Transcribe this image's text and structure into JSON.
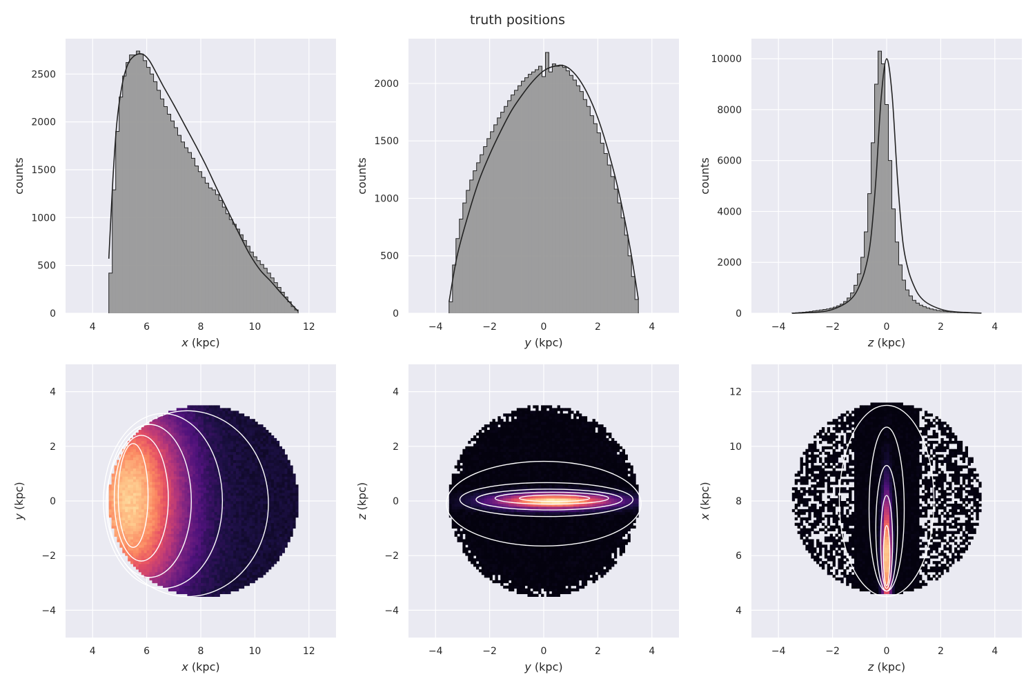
{
  "figure_title": "truth positions",
  "style": {
    "axes_bg": "#eaeaf2",
    "grid": "#ffffff",
    "hist_fill": "#999999",
    "hist_edge": "#222222",
    "contour": "#ffffff",
    "colormap": "magma"
  },
  "chart_data": [
    {
      "type": "histogram",
      "name": "hist-x",
      "xlabel_var": "x",
      "xlabel_unit": " (kpc)",
      "ylabel": "counts",
      "xlim": [
        3,
        13
      ],
      "ylim": [
        0,
        2870
      ],
      "xticks": [
        4,
        6,
        8,
        10,
        12
      ],
      "yticks": [
        0,
        500,
        1000,
        1500,
        2000,
        2500
      ],
      "bin_range": [
        4.6,
        11.6
      ],
      "bin_counts": [
        420,
        1290,
        1900,
        2260,
        2480,
        2620,
        2700,
        2700,
        2740,
        2710,
        2640,
        2570,
        2500,
        2420,
        2330,
        2240,
        2160,
        2080,
        2010,
        1940,
        1860,
        1790,
        1730,
        1680,
        1620,
        1540,
        1480,
        1420,
        1360,
        1310,
        1290,
        1240,
        1180,
        1110,
        1040,
        980,
        930,
        880,
        820,
        760,
        700,
        640,
        590,
        550,
        510,
        470,
        420,
        370,
        320,
        270,
        220,
        170,
        120,
        70,
        35
      ],
      "kde_x": [
        4.6,
        4.75,
        4.9,
        5.1,
        5.3,
        5.5,
        5.7,
        5.9,
        6.1,
        6.3,
        6.6,
        7.0,
        7.4,
        7.8,
        8.2,
        8.6,
        9.0,
        9.4,
        9.8,
        10.2,
        10.6,
        11.0,
        11.3,
        11.6
      ],
      "kde_y": [
        570,
        1400,
        2000,
        2400,
        2600,
        2680,
        2710,
        2700,
        2640,
        2540,
        2380,
        2180,
        1970,
        1760,
        1540,
        1300,
        1070,
        840,
        620,
        450,
        330,
        200,
        110,
        20
      ]
    },
    {
      "type": "histogram",
      "name": "hist-y",
      "xlabel_var": "y",
      "xlabel_unit": " (kpc)",
      "ylabel": "counts",
      "xlim": [
        -5,
        5
      ],
      "ylim": [
        0,
        2390
      ],
      "xticks": [
        -4,
        -2,
        0,
        2,
        4
      ],
      "yticks": [
        0,
        500,
        1000,
        1500,
        2000
      ],
      "bin_range": [
        -3.5,
        3.5
      ],
      "bin_counts": [
        100,
        420,
        650,
        820,
        960,
        1070,
        1160,
        1240,
        1310,
        1380,
        1450,
        1520,
        1580,
        1640,
        1700,
        1750,
        1800,
        1850,
        1900,
        1940,
        1980,
        2020,
        2050,
        2080,
        2100,
        2120,
        2150,
        2060,
        2270,
        2100,
        2170,
        2150,
        2160,
        2140,
        2110,
        2070,
        2030,
        1980,
        1930,
        1860,
        1800,
        1720,
        1650,
        1570,
        1480,
        1390,
        1290,
        1190,
        1080,
        960,
        830,
        680,
        500,
        320,
        120
      ],
      "kde_x": [
        -3.5,
        -3.2,
        -2.8,
        -2.4,
        -2.0,
        -1.6,
        -1.2,
        -0.8,
        -0.4,
        0.0,
        0.4,
        0.8,
        1.2,
        1.6,
        2.0,
        2.4,
        2.8,
        3.2,
        3.5
      ],
      "kde_y": [
        100,
        500,
        850,
        1150,
        1380,
        1580,
        1760,
        1900,
        2020,
        2110,
        2150,
        2150,
        2070,
        1920,
        1700,
        1400,
        1030,
        560,
        120
      ]
    },
    {
      "type": "histogram",
      "name": "hist-z",
      "xlabel_var": "z",
      "xlabel_unit": " (kpc)",
      "ylabel": "counts",
      "xlim": [
        -5,
        5
      ],
      "ylim": [
        0,
        10790
      ],
      "xticks": [
        -4,
        -2,
        0,
        2,
        4
      ],
      "yticks": [
        0,
        2000,
        4000,
        6000,
        8000,
        10000
      ],
      "bin_range": [
        -3.5,
        3.5
      ],
      "bin_counts": [
        10,
        20,
        30,
        40,
        55,
        70,
        90,
        110,
        130,
        150,
        170,
        200,
        240,
        290,
        360,
        460,
        600,
        800,
        1100,
        1550,
        2200,
        3200,
        4700,
        6700,
        9000,
        10300,
        9800,
        8200,
        6000,
        4100,
        2800,
        1900,
        1300,
        920,
        680,
        510,
        400,
        320,
        260,
        210,
        170,
        140,
        110,
        90,
        75,
        60,
        50,
        40,
        30,
        25,
        20,
        15,
        10,
        8,
        5
      ],
      "kde_x": [
        -3.5,
        -2.5,
        -2.0,
        -1.5,
        -1.2,
        -1.0,
        -0.8,
        -0.6,
        -0.4,
        -0.2,
        0.0,
        0.2,
        0.4,
        0.6,
        0.8,
        1.0,
        1.2,
        1.5,
        2.0,
        2.5,
        3.5
      ],
      "kde_y": [
        0,
        50,
        150,
        400,
        700,
        1100,
        1700,
        2800,
        5200,
        8500,
        10000,
        8600,
        5300,
        2800,
        1700,
        1100,
        700,
        400,
        160,
        60,
        5
      ]
    },
    {
      "type": "heatmap",
      "name": "xy",
      "xlabel_var": "x",
      "xlabel_unit": " (kpc)",
      "ylabel_var": "y",
      "ylabel_unit": " (kpc)",
      "xlim": [
        3,
        13
      ],
      "ylim": [
        -5,
        5
      ],
      "xticks": [
        4,
        6,
        8,
        10,
        12
      ],
      "yticks": [
        -4,
        -2,
        0,
        2,
        4
      ],
      "contours": [
        {
          "cx": 5.5,
          "cy": 0.2,
          "rx": 0.55,
          "ry": 1.9
        },
        {
          "cx": 5.8,
          "cy": 0.1,
          "rx": 1.0,
          "ry": 2.3
        },
        {
          "cx": 6.1,
          "cy": 0.0,
          "rx": 1.55,
          "ry": 2.8
        },
        {
          "cx": 6.6,
          "cy": 0.0,
          "rx": 2.2,
          "ry": 3.2
        },
        {
          "cx": 7.5,
          "cy": -0.1,
          "rx": 3.0,
          "ry": 3.4
        }
      ]
    },
    {
      "type": "heatmap",
      "name": "yz",
      "xlabel_var": "y",
      "xlabel_unit": " (kpc)",
      "ylabel_var": "z",
      "ylabel_unit": " (kpc)",
      "xlim": [
        -5,
        5
      ],
      "ylim": [
        -5,
        5
      ],
      "xticks": [
        -4,
        -2,
        0,
        2,
        4
      ],
      "yticks": [
        -4,
        -2,
        0,
        2,
        4
      ],
      "contours": [
        {
          "cx": 0.4,
          "cy": 0.1,
          "rx": 1.3,
          "ry": 0.12
        },
        {
          "cx": 0.3,
          "cy": 0.1,
          "rx": 2.1,
          "ry": 0.22
        },
        {
          "cx": 0.2,
          "cy": 0.05,
          "rx": 2.7,
          "ry": 0.38
        },
        {
          "cx": 0.1,
          "cy": 0.05,
          "rx": 3.2,
          "ry": 0.62
        },
        {
          "cx": 0.0,
          "cy": -0.1,
          "rx": 3.6,
          "ry": 1.55
        }
      ]
    },
    {
      "type": "heatmap",
      "name": "zx",
      "xlabel_var": "z",
      "xlabel_unit": " (kpc)",
      "ylabel_var": "x",
      "ylabel_unit": " (kpc)",
      "xlim": [
        -5,
        5
      ],
      "ylim": [
        3,
        13
      ],
      "xticks": [
        -4,
        -2,
        0,
        2,
        4
      ],
      "yticks": [
        4,
        6,
        8,
        10,
        12
      ],
      "contours": [
        {
          "cx": 0.0,
          "cy": 6.0,
          "rx": 0.12,
          "ry": 1.1
        },
        {
          "cx": 0.0,
          "cy": 6.5,
          "rx": 0.22,
          "ry": 1.7
        },
        {
          "cx": 0.0,
          "cy": 7.0,
          "rx": 0.4,
          "ry": 2.3
        },
        {
          "cx": 0.0,
          "cy": 7.7,
          "rx": 0.65,
          "ry": 3.0
        },
        {
          "cx": 0.0,
          "cy": 8.0,
          "rx": 1.75,
          "ry": 3.5
        }
      ]
    }
  ]
}
